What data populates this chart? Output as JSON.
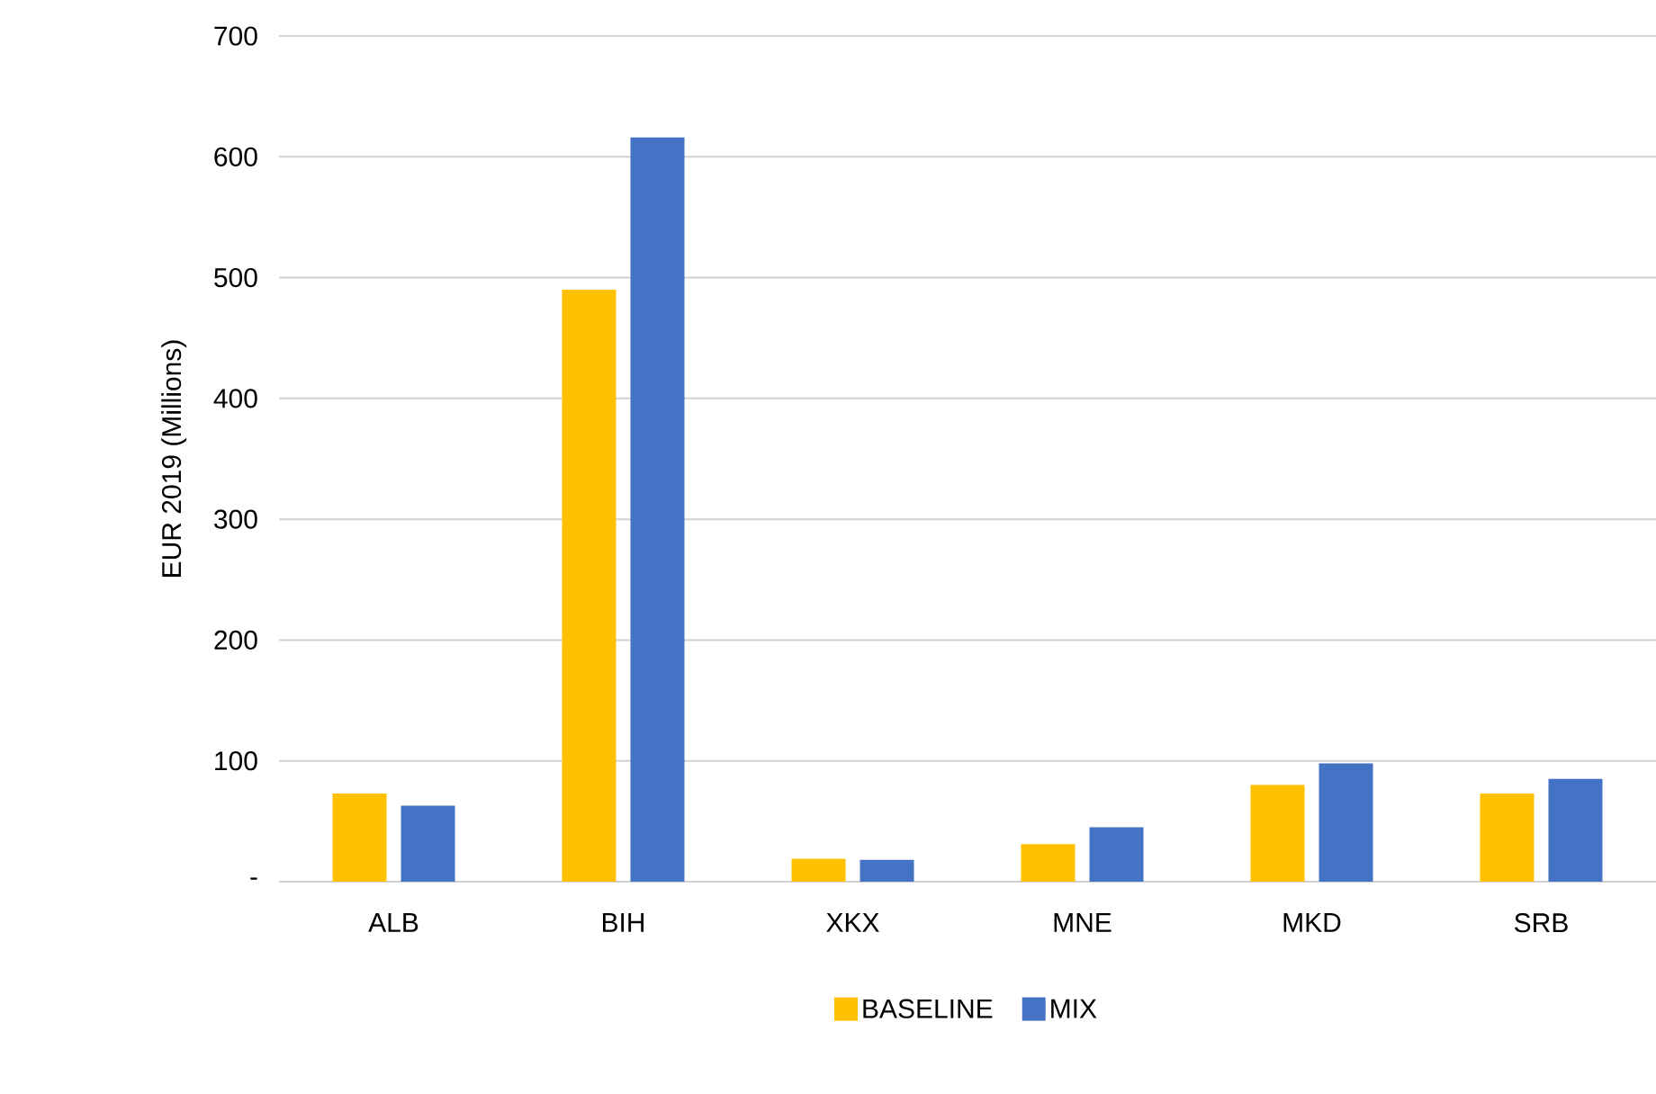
{
  "chart_data": {
    "type": "bar",
    "ylabel": "EUR 2019 (Millions)",
    "categories": [
      "ALB",
      "BIH",
      "XKX",
      "MNE",
      "MKD",
      "SRB"
    ],
    "series": [
      {
        "name": "BASELINE",
        "color": "#ffc000",
        "values": [
          73,
          490,
          19,
          31,
          80,
          73
        ]
      },
      {
        "name": "MIX",
        "color": "#4472c4",
        "values": [
          63,
          616,
          18,
          45,
          98,
          85
        ]
      }
    ],
    "ylim": [
      0,
      700
    ],
    "yticks": [
      {
        "value": 0,
        "label": "-"
      },
      100,
      200,
      300,
      400,
      500,
      600,
      700
    ],
    "grid": "y",
    "legend": "bottom"
  }
}
